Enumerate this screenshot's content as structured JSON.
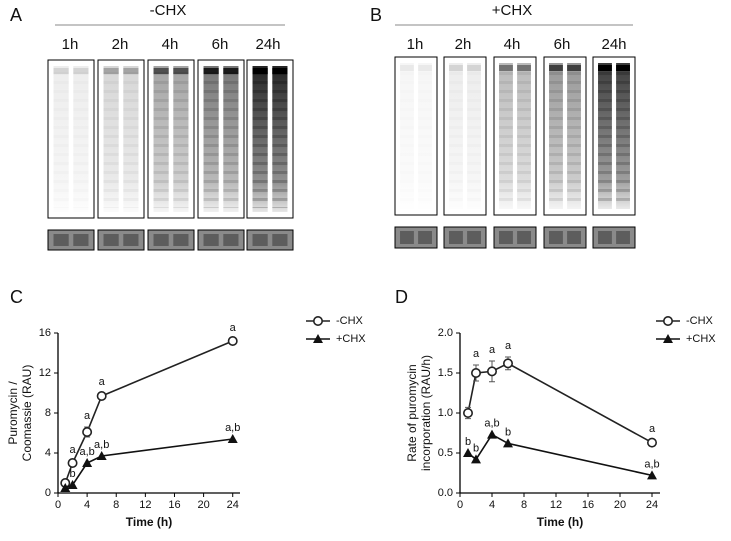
{
  "figure": {
    "panel_a": {
      "label": "A",
      "condition": "-CHX",
      "lanes": [
        "1h",
        "2h",
        "4h",
        "6h",
        "24h"
      ]
    },
    "panel_b": {
      "label": "B",
      "condition": "+CHX",
      "lanes": [
        "1h",
        "2h",
        "4h",
        "6h",
        "24h"
      ]
    }
  },
  "chart_data": [
    {
      "type": "line",
      "panel_label": "C",
      "xlabel": "Time (h)",
      "ylabel_lines": [
        "Puromycin /",
        "Coomassie (RAU)"
      ],
      "x": [
        1,
        2,
        4,
        6,
        24
      ],
      "xlim": [
        0,
        25
      ],
      "xticks": [
        0,
        4,
        8,
        12,
        16,
        20,
        24
      ],
      "ylim": [
        0,
        16
      ],
      "yticks": [
        0,
        4,
        8,
        12,
        16
      ],
      "legend": "top-right",
      "series": [
        {
          "name": "-CHX",
          "color": "#222222",
          "marker": "circle",
          "values": [
            1.0,
            3.0,
            6.1,
            9.7,
            15.2
          ],
          "errors": [
            0.1,
            0.2,
            0.5,
            0.3,
            0.2
          ],
          "annotations": [
            null,
            "a",
            "a",
            "a",
            "a"
          ]
        },
        {
          "name": "+CHX",
          "color": "#111111",
          "marker": "triangle",
          "values": [
            0.5,
            0.8,
            3.0,
            3.7,
            5.4
          ],
          "annotations": [
            null,
            "b",
            "a,b",
            "a,b",
            "a,b"
          ]
        }
      ]
    },
    {
      "type": "line",
      "panel_label": "D",
      "xlabel": "Time (h)",
      "ylabel_lines": [
        "Rate of puromycin",
        "incorporation (RAU/h)"
      ],
      "x": [
        1,
        2,
        4,
        6,
        24
      ],
      "xlim": [
        0,
        25
      ],
      "xticks": [
        0,
        4,
        8,
        12,
        16,
        20,
        24
      ],
      "ylim": [
        0,
        2
      ],
      "yticks": [
        {
          "value": 0,
          "label": "0.0"
        },
        0.5,
        {
          "value": 1,
          "label": "1.0"
        },
        1.5,
        {
          "value": 2,
          "label": "2.0"
        }
      ],
      "legend": "top-right",
      "series": [
        {
          "name": "-CHX",
          "color": "#222222",
          "marker": "circle",
          "values": [
            1.0,
            1.5,
            1.52,
            1.62,
            0.63
          ],
          "errors": [
            0.07,
            0.1,
            0.13,
            0.08,
            0.03
          ],
          "annotations": [
            null,
            "a",
            "a",
            "a",
            "a"
          ]
        },
        {
          "name": "+CHX",
          "color": "#111111",
          "marker": "triangle",
          "values": [
            0.5,
            0.42,
            0.73,
            0.62,
            0.22
          ],
          "annotations": [
            "b",
            "b",
            "a,b",
            "b",
            "a,b"
          ]
        }
      ]
    }
  ]
}
